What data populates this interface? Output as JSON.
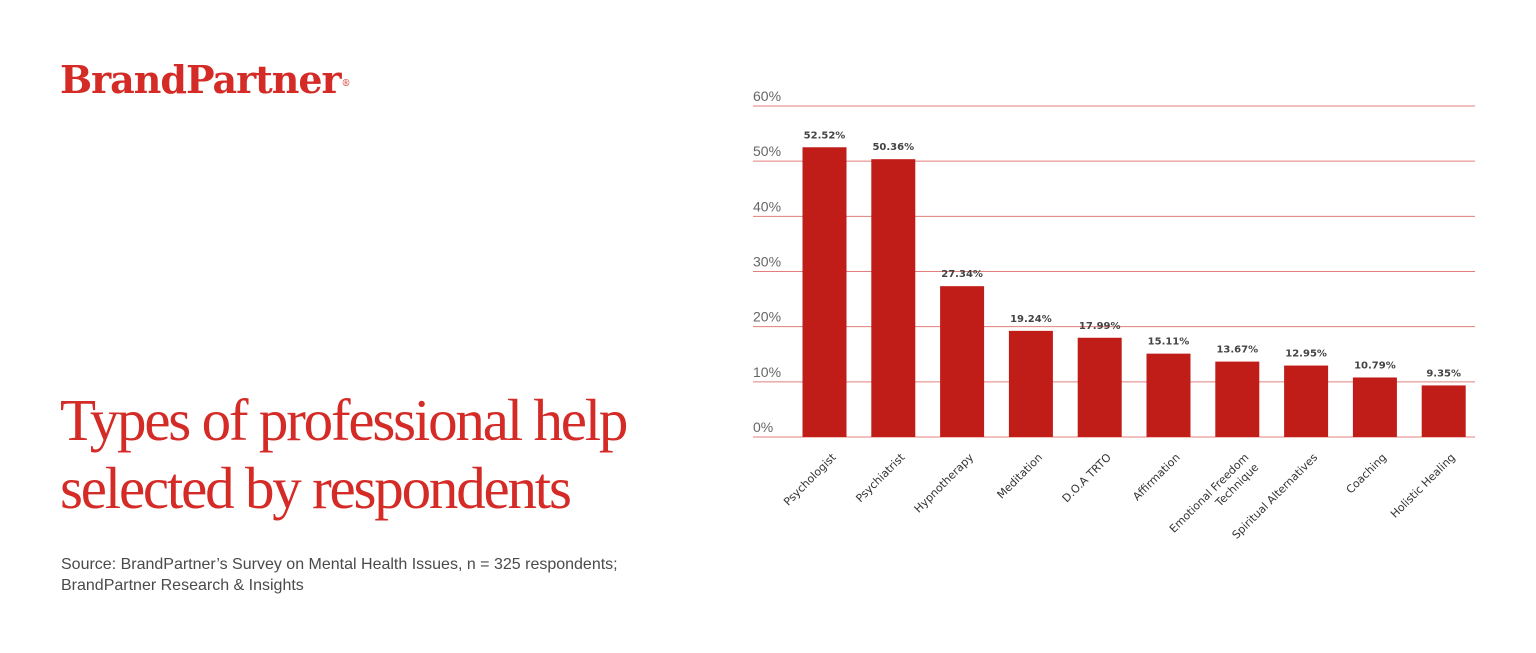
{
  "brand": {
    "name": "BrandPartner",
    "registered_mark": "®"
  },
  "title": "Types of professional help selected by respondents",
  "source": "Source: BrandPartner’s Survey on Mental Health Issues, n = 325 respondents; BrandPartner Research & Insights",
  "colors": {
    "brand": "#d42b27",
    "bar": "#c01d18",
    "grid": "#e07f7c",
    "tick_text": "#666666",
    "label_text": "#444444"
  },
  "chart_data": {
    "type": "bar",
    "title": "Types of professional help selected by respondents",
    "xlabel": "",
    "ylabel": "",
    "ylim": [
      0,
      60
    ],
    "yticks": [
      0,
      10,
      20,
      30,
      40,
      50,
      60
    ],
    "ytick_labels": [
      "0%",
      "10%",
      "20%",
      "30%",
      "40%",
      "50%",
      "60%"
    ],
    "grid": true,
    "categories": [
      "Psychologist",
      "Psychiatrist",
      "Hypnotherapy",
      "Meditation",
      "D.O.A TRTO",
      "Affirmation",
      "Emotional Freedom Technique",
      "Spiritual Alternatives",
      "Coaching",
      "Holistic Healing"
    ],
    "category_lines": [
      [
        "Psychologist"
      ],
      [
        "Psychiatrist"
      ],
      [
        "Hypnotherapy"
      ],
      [
        "Meditation"
      ],
      [
        "D.O.A TRTO"
      ],
      [
        "Affirmation"
      ],
      [
        "Emotional Freedom",
        "Technique"
      ],
      [
        "Spiritual Alternatives"
      ],
      [
        "Coaching"
      ],
      [
        "Holistic Healing"
      ]
    ],
    "values": [
      52.52,
      50.36,
      27.34,
      19.24,
      17.99,
      15.11,
      13.67,
      12.95,
      10.79,
      9.35
    ],
    "data_labels": [
      "52.52%",
      "50.36%",
      "27.34%",
      "19.24%",
      "17.99%",
      "15.11%",
      "13.67%",
      "12.95%",
      "10.79%",
      "9.35%"
    ]
  }
}
